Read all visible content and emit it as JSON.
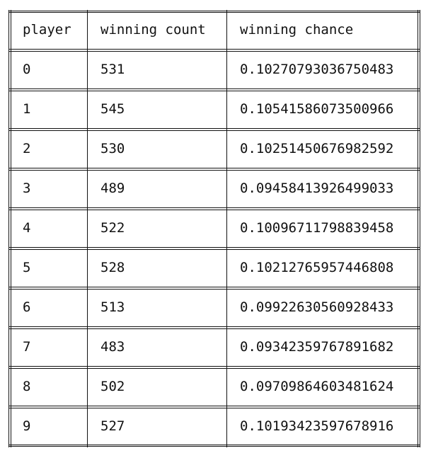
{
  "table": {
    "headers": [
      "player",
      "winning count",
      "winning chance"
    ],
    "rows": [
      [
        "0",
        "531",
        "0.10270793036750483"
      ],
      [
        "1",
        "545",
        "0.10541586073500966"
      ],
      [
        "2",
        "530",
        "0.10251450676982592"
      ],
      [
        "3",
        "489",
        "0.09458413926499033"
      ],
      [
        "4",
        "522",
        "0.10096711798839458"
      ],
      [
        "5",
        "528",
        "0.10212765957446808"
      ],
      [
        "6",
        "513",
        "0.09922630560928433"
      ],
      [
        "7",
        "483",
        "0.09342359767891682"
      ],
      [
        "8",
        "502",
        "0.09709864603481624"
      ],
      [
        "9",
        "527",
        "0.10193423597678916"
      ]
    ]
  }
}
